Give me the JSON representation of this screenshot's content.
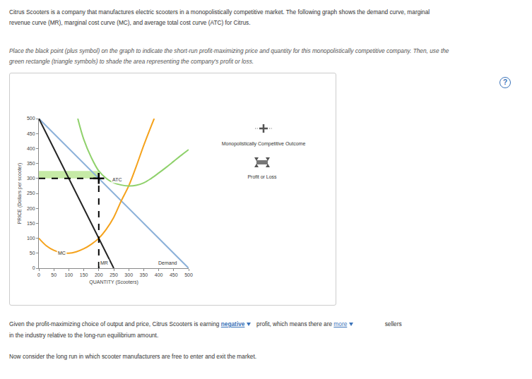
{
  "page": {
    "intro": "Citrus Scooters is a company that manufactures electric scooters in a monopolistically competitive market. The following graph shows the demand curve, marginal revenue curve (MR), marginal cost curve (MC), and average total cost curve (ATC) for Citrus.",
    "instruction": "Place the black point (plus symbol) on the graph to indicate the short-run profit-maximizing price and quantity for this monopolistically competitive company. Then, use the green rectangle (triangle symbols) to shade the area representing the company's profit or loss.",
    "help": "?",
    "palette": [
      {
        "label": "Monopolistically Competitive Outcome",
        "marker": "plus"
      },
      {
        "label": "Profit or Loss",
        "marker": "triangle"
      }
    ],
    "question": {
      "before": "Given the profit-maximizing choice of output and price, Citrus Scooters is earning",
      "answer1": "negative",
      "middle": "profit, which means there are",
      "answer2": "more",
      "after": "sellers in the industry relative to the long-run equilibrium amount."
    },
    "followup": "Now consider the long run in which scooter manufacturers are free to enter and exit the market."
  },
  "chart_data": {
    "type": "line",
    "x_label": "QUANTITY (Scooters)",
    "y_label": "PRICE (Dollars per scooter)",
    "xlim": [
      0,
      500
    ],
    "ylim": [
      0,
      500
    ],
    "xticks": [
      0,
      50,
      100,
      150,
      200,
      250,
      300,
      350,
      400,
      450,
      500
    ],
    "yticks": [
      0,
      50,
      100,
      150,
      200,
      250,
      300,
      350,
      400,
      450,
      500
    ],
    "grid": false,
    "series": [
      {
        "name": "Demand",
        "color": "#8cb1d9",
        "x": [
          0,
          500
        ],
        "values": [
          500,
          0
        ]
      },
      {
        "name": "MR",
        "color": "#222222",
        "x": [
          0,
          250
        ],
        "values": [
          500,
          0
        ]
      },
      {
        "name": "MC",
        "color": "#f5a21b",
        "x": [
          0,
          25,
          50,
          75,
          100,
          125,
          150,
          175,
          200,
          225,
          250,
          275,
          300,
          325,
          350,
          375,
          385
        ],
        "values": [
          100,
          75,
          60,
          52,
          50,
          55,
          65,
          80,
          100,
          130,
          170,
          225,
          275,
          340,
          410,
          475,
          500
        ]
      },
      {
        "name": "ATC",
        "color": "#8fd16b",
        "x": [
          130,
          150,
          175,
          200,
          225,
          250,
          275,
          300,
          325,
          350,
          375,
          400,
          425,
          450,
          475,
          500
        ],
        "values": [
          500,
          430,
          370,
          325,
          300,
          285,
          278,
          275,
          277,
          285,
          300,
          318,
          337,
          357,
          377,
          396
        ]
      }
    ],
    "outcome": {
      "quantity": 200,
      "price": 300,
      "marker": "cross-thin",
      "color": "#000000"
    },
    "profit_or_loss": {
      "atc": 325,
      "color": "#c6eaa6"
    }
  }
}
